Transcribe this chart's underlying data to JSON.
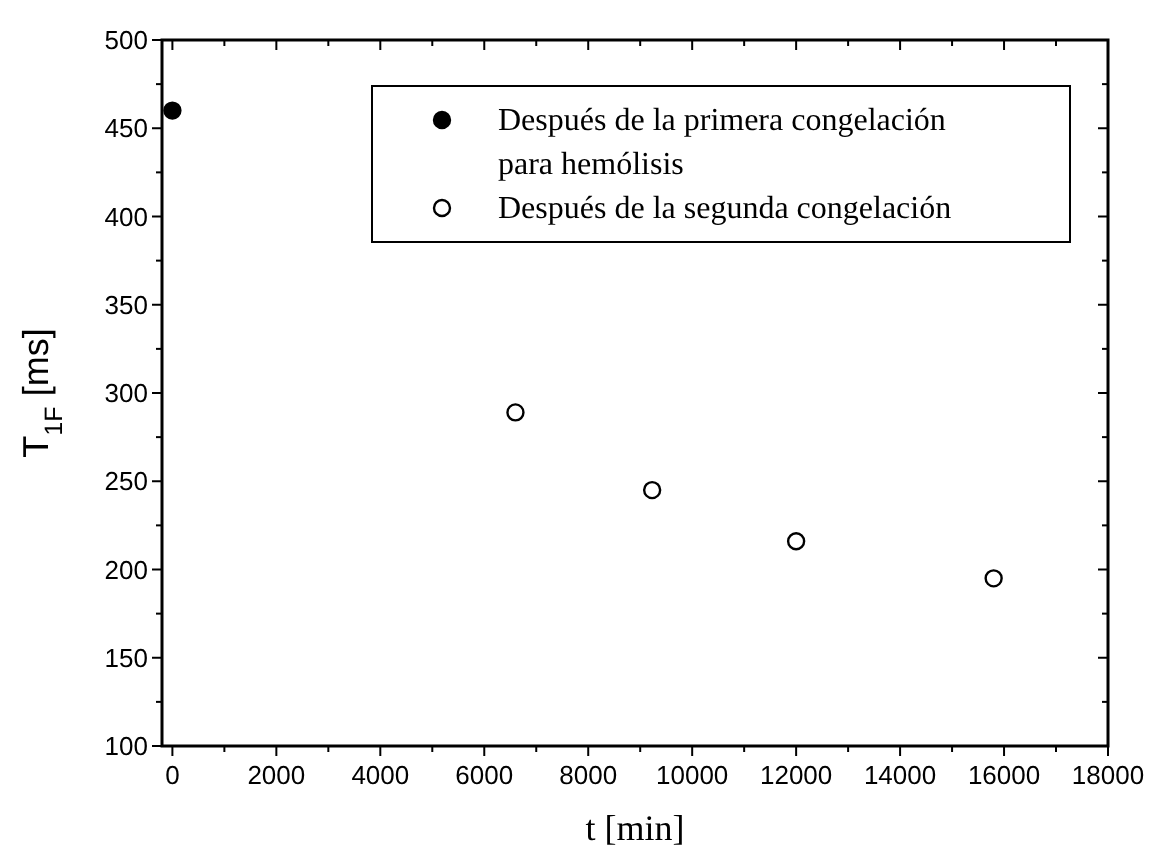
{
  "chart_data": {
    "type": "scatter",
    "xlabel": "t [min]",
    "ylabel": "T$_{1F}$ [ms]",
    "xlim": [
      -200,
      18000
    ],
    "ylim": [
      100,
      500
    ],
    "xticks": [
      0,
      {
        "value": 1000,
        "label": null
      },
      2000,
      {
        "value": 3000,
        "label": null
      },
      4000,
      {
        "value": 5000,
        "label": null
      },
      6000,
      {
        "value": 7000,
        "label": null
      },
      8000,
      {
        "value": 9000,
        "label": null
      },
      10000,
      {
        "value": 11000,
        "label": null
      },
      12000,
      {
        "value": 13000,
        "label": null
      },
      14000,
      {
        "value": 15000,
        "label": null
      },
      16000,
      {
        "value": 17000,
        "label": null
      },
      18000
    ],
    "yticks": [
      100,
      {
        "value": 125,
        "label": null
      },
      150,
      {
        "value": 175,
        "label": null
      },
      200,
      {
        "value": 225,
        "label": null
      },
      250,
      {
        "value": 275,
        "label": null
      },
      300,
      {
        "value": 325,
        "label": null
      },
      350,
      {
        "value": 375,
        "label": null
      },
      400,
      {
        "value": 425,
        "label": null
      },
      450,
      {
        "value": 475,
        "label": null
      },
      500
    ],
    "marker": "circle",
    "legend": "top right",
    "grid": false,
    "series": [
      {
        "name": "Después de la primera congelación\npara hemólisis",
        "color": "#000000",
        "x": [
          0
        ],
        "values": [
          460
        ]
      },
      {
        "name": "Después de la segunda congelación",
        "color": "#ffffff",
        "x": [
          6600,
          9230,
          12000,
          15800
        ],
        "values": [
          289,
          245,
          216,
          195
        ]
      }
    ]
  }
}
